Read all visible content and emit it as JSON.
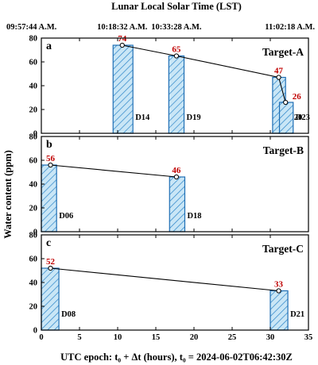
{
  "top_axis": {
    "title": "Lunar Local Solar Time (LST)",
    "ticks": [
      {
        "label": "09:57:44 A.M.",
        "x": 1.2
      },
      {
        "label": "10:18:32 A.M.",
        "x": 10.6
      },
      {
        "label": "10:33:28 A.M.",
        "x": 17.7
      },
      {
        "label": "11:02:18 A.M.",
        "x": 31.1
      }
    ]
  },
  "ylabel": "Water content (ppm)",
  "xlabel": "UTC epoch: t₀ + Δt (hours), t₀ = 2024-06-02T06:42:30Z",
  "chart_data": [
    {
      "type": "bar",
      "panel": "a",
      "title": "Target-A",
      "xlim": [
        0,
        35
      ],
      "ylim": [
        0,
        80
      ],
      "yticks": [
        0,
        20,
        40,
        60,
        80
      ],
      "bars": [
        {
          "label": "D14",
          "x_start": 9.4,
          "x_end": 12.0,
          "value": 74
        },
        {
          "label": "D19",
          "x_start": 16.7,
          "x_end": 18.7,
          "value": 65
        },
        {
          "label": "D20",
          "x_start": 30.3,
          "x_end": 32.0,
          "value": 47
        },
        {
          "label": "D23",
          "x_start": 31.2,
          "x_end": 33.0,
          "value": 26
        }
      ],
      "trend": [
        {
          "x": 10.6,
          "y": 74,
          "label": "74"
        },
        {
          "x": 17.7,
          "y": 65,
          "label": "65"
        },
        {
          "x": 31.1,
          "y": 47,
          "label": "47"
        },
        {
          "x": 32.0,
          "y": 26,
          "label": "26"
        }
      ]
    },
    {
      "type": "bar",
      "panel": "b",
      "title": "Target-B",
      "xlim": [
        0,
        35
      ],
      "ylim": [
        0,
        80
      ],
      "yticks": [
        0,
        20,
        40,
        60,
        80
      ],
      "bars": [
        {
          "label": "D06",
          "x_start": 0,
          "x_end": 2.0,
          "value": 56
        },
        {
          "label": "D18",
          "x_start": 16.8,
          "x_end": 18.8,
          "value": 46
        }
      ],
      "trend": [
        {
          "x": 1.2,
          "y": 56,
          "label": "56"
        },
        {
          "x": 17.7,
          "y": 46,
          "label": "46"
        }
      ]
    },
    {
      "type": "bar",
      "panel": "c",
      "title": "Target-C",
      "xlim": [
        0,
        35
      ],
      "ylim": [
        0,
        80
      ],
      "yticks": [
        0,
        20,
        40,
        60,
        80
      ],
      "xticks": [
        0,
        5,
        10,
        15,
        20,
        25,
        30,
        35
      ],
      "bars": [
        {
          "label": "D08",
          "x_start": 0,
          "x_end": 2.3,
          "value": 52
        },
        {
          "label": "D21",
          "x_start": 30.0,
          "x_end": 32.3,
          "value": 33
        }
      ],
      "trend": [
        {
          "x": 1.2,
          "y": 52,
          "label": "52"
        },
        {
          "x": 31.1,
          "y": 33,
          "label": "33"
        }
      ]
    }
  ],
  "colors": {
    "bar_fill": "#c9e6f6",
    "bar_hatch": "#2c84c8",
    "bar_edge": "#1f6fb5",
    "value_label": "#c00000",
    "axis": "#000000"
  }
}
